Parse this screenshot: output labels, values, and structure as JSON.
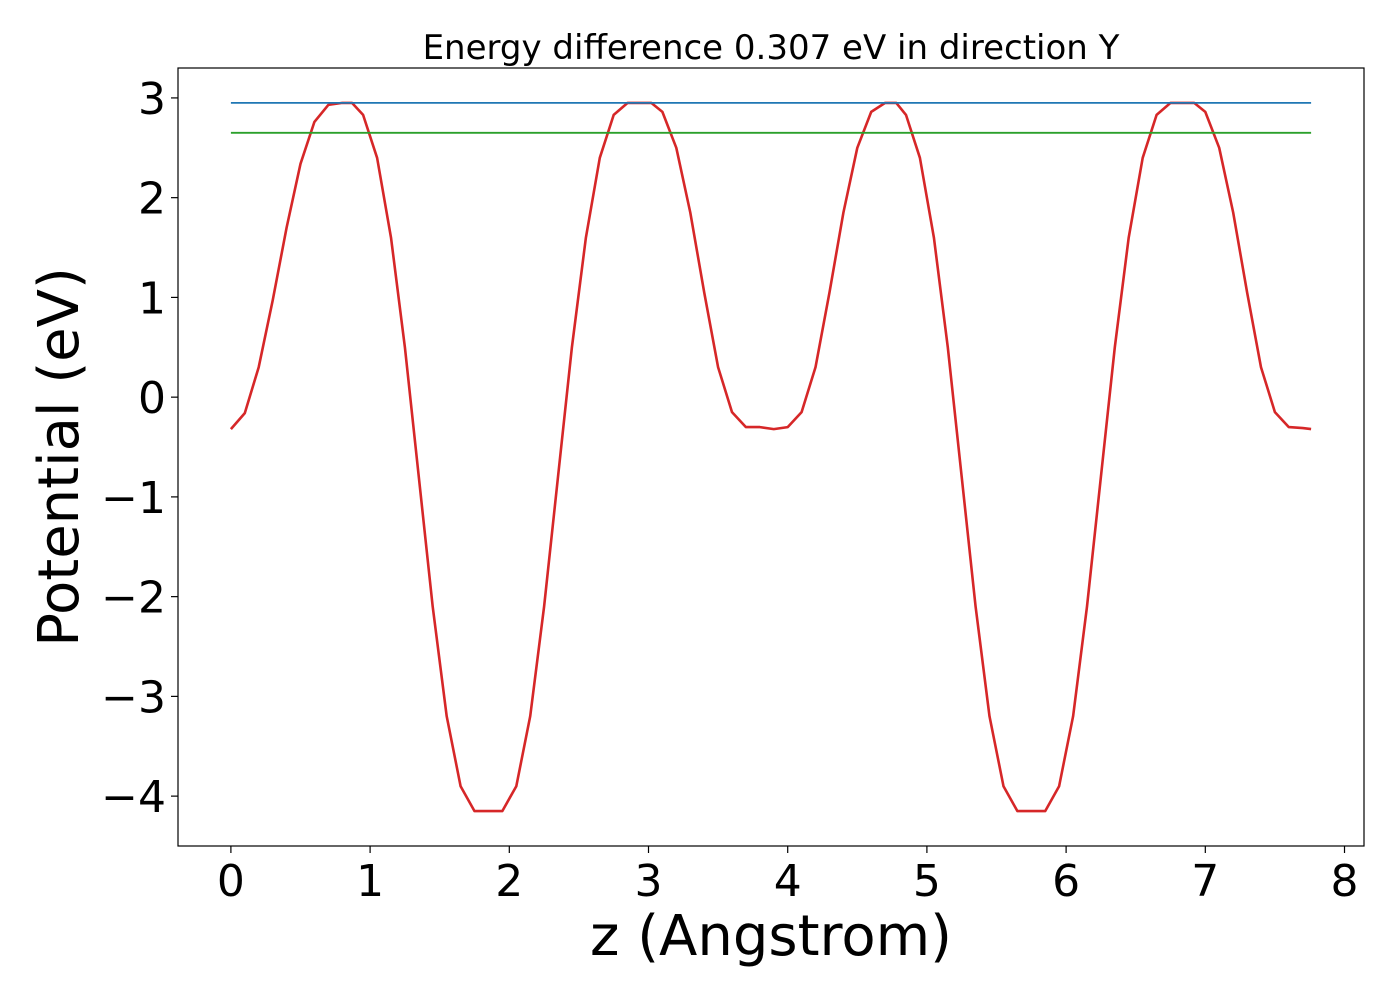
{
  "chart_data": {
    "type": "line",
    "title": "Energy difference 0.307 eV in direction Y",
    "xlabel": "z (Angstrom)",
    "ylabel": "Potential (eV)",
    "xlim": [
      -0.38,
      8.14
    ],
    "ylim": [
      -4.5,
      3.3
    ],
    "xticks": [
      0,
      1,
      2,
      3,
      4,
      5,
      6,
      7,
      8
    ],
    "xtick_labels": [
      "0",
      "1",
      "2",
      "3",
      "4",
      "5",
      "6",
      "7",
      "8"
    ],
    "yticks": [
      -4,
      -3,
      -2,
      -1,
      0,
      1,
      2,
      3
    ],
    "ytick_labels": [
      "−4",
      "−3",
      "−2",
      "−1",
      "0",
      "1",
      "2",
      "3"
    ],
    "grid": false,
    "legend": "none",
    "series": [
      {
        "color": "#d62728",
        "x": [
          0,
          0.1,
          0.2,
          0.3,
          0.4,
          0.5,
          0.6,
          0.7,
          0.8,
          0.87,
          0.95,
          1.05,
          1.15,
          1.25,
          1.35,
          1.45,
          1.55,
          1.65,
          1.75,
          1.85,
          1.95,
          2.05,
          2.15,
          2.25,
          2.35,
          2.45,
          2.55,
          2.65,
          2.75,
          2.85,
          2.95,
          3.02,
          3.1,
          3.2,
          3.3,
          3.4,
          3.5,
          3.6,
          3.7,
          3.8,
          3.9,
          4.0,
          4.1,
          4.2,
          4.3,
          4.4,
          4.5,
          4.6,
          4.7,
          4.78,
          4.85,
          4.95,
          5.05,
          5.15,
          5.25,
          5.35,
          5.45,
          5.55,
          5.65,
          5.75,
          5.85,
          5.95,
          6.05,
          6.15,
          6.25,
          6.35,
          6.45,
          6.55,
          6.65,
          6.75,
          6.85,
          6.92,
          7.0,
          7.1,
          7.2,
          7.3,
          7.4,
          7.5,
          7.6,
          7.7,
          7.76
        ],
        "y": [
          -0.32,
          -0.16,
          0.3,
          0.97,
          1.7,
          2.34,
          2.76,
          2.93,
          2.95,
          2.95,
          2.83,
          2.4,
          1.6,
          0.5,
          -0.8,
          -2.1,
          -3.2,
          -3.9,
          -4.15,
          -4.15,
          -4.15,
          -3.9,
          -3.2,
          -2.1,
          -0.8,
          0.5,
          1.6,
          2.4,
          2.83,
          2.95,
          2.95,
          2.95,
          2.86,
          2.5,
          1.85,
          1.05,
          0.3,
          -0.15,
          -0.3,
          -0.3,
          -0.32,
          -0.3,
          -0.15,
          0.3,
          1.05,
          1.85,
          2.5,
          2.86,
          2.95,
          2.95,
          2.83,
          2.4,
          1.6,
          0.5,
          -0.8,
          -2.1,
          -3.2,
          -3.9,
          -4.15,
          -4.15,
          -4.15,
          -3.9,
          -3.2,
          -2.1,
          -0.8,
          0.5,
          1.6,
          2.4,
          2.83,
          2.95,
          2.95,
          2.95,
          2.86,
          2.5,
          1.85,
          1.05,
          0.3,
          -0.15,
          -0.3,
          -0.31,
          -0.32
        ]
      },
      {
        "color": "#1f77b4",
        "x": [
          0,
          7.76
        ],
        "y": [
          2.95,
          2.95
        ]
      },
      {
        "color": "#2ca02c",
        "x": [
          0,
          7.76
        ],
        "y": [
          2.65,
          2.65
        ]
      }
    ]
  }
}
